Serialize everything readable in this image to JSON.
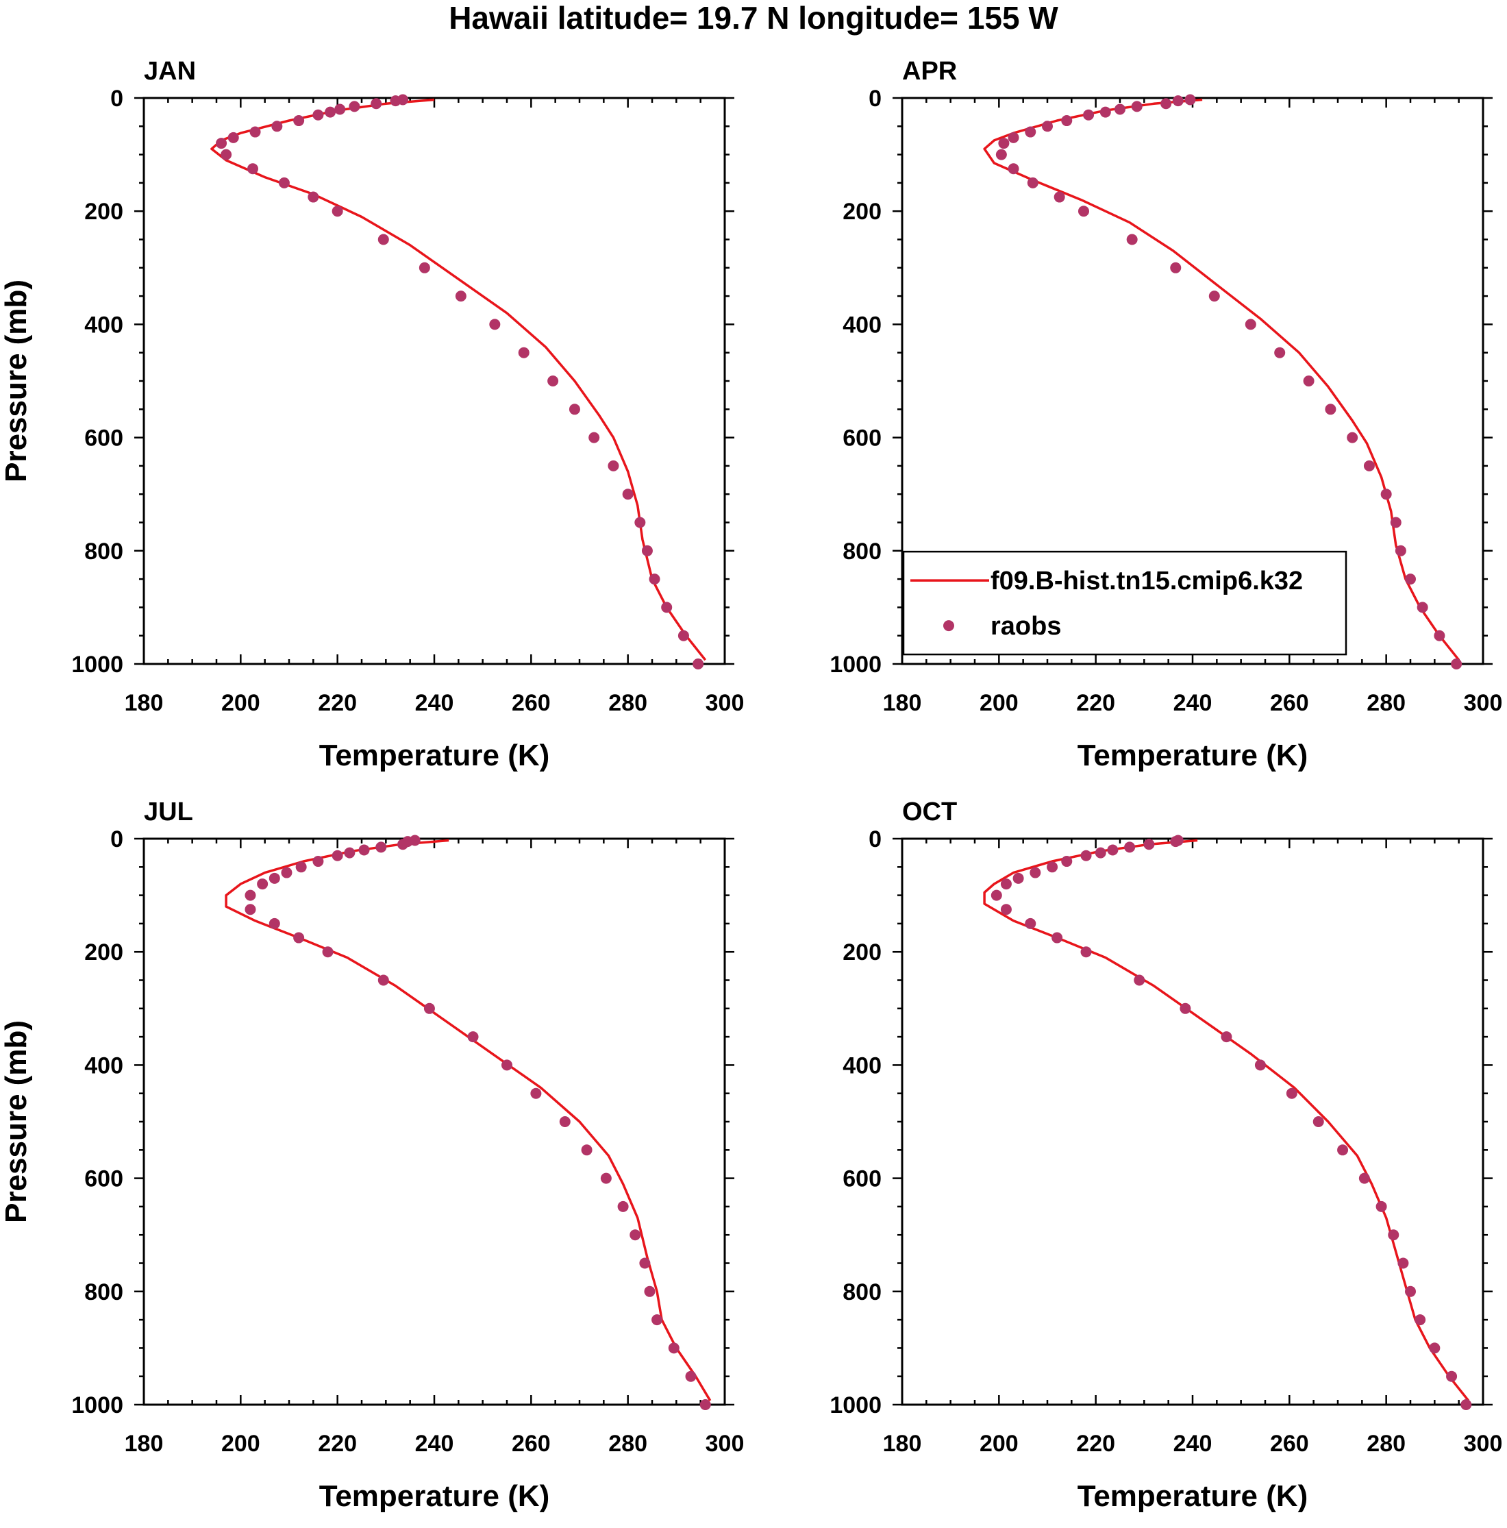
{
  "figure_title": "Hawaii  latitude= 19.7 N longitude= 155 W",
  "legend": {
    "model_label": "f09.B-hist.tn15.cmip6.k32",
    "obs_label": "raobs"
  },
  "colors": {
    "model": "#e8151b",
    "obs": "#b23466",
    "axis": "#000000"
  },
  "chart_data": [
    {
      "type": "line",
      "panel": "JAN",
      "title": "JAN",
      "xlabel": "Temperature (K)",
      "ylabel": "Pressure (mb)",
      "xlim": [
        180,
        300
      ],
      "ylim": [
        1000,
        0
      ],
      "xticks": [
        "180",
        "200",
        "220",
        "240",
        "260",
        "280",
        "300"
      ],
      "yticks": [
        "0",
        "200",
        "400",
        "600",
        "800",
        "1000"
      ],
      "series": [
        {
          "name": "f09.B-hist.tn15.cmip6.k32",
          "kind": "line",
          "t": [
            240,
            230,
            220,
            210,
            200,
            196,
            194,
            197,
            205,
            215,
            225,
            235,
            245,
            255,
            263,
            269,
            274,
            277,
            280,
            282,
            283,
            285,
            288,
            292,
            296
          ],
          "p": [
            3,
            10,
            22,
            40,
            62,
            75,
            90,
            110,
            140,
            170,
            210,
            260,
            320,
            380,
            440,
            500,
            560,
            600,
            660,
            720,
            780,
            850,
            900,
            950,
            993
          ]
        },
        {
          "name": "raobs",
          "kind": "scatter",
          "t": [
            233.5,
            232,
            228,
            223.5,
            220.5,
            218.5,
            216,
            212,
            207.5,
            203,
            198.5,
            196,
            197,
            202.5,
            209,
            215,
            220,
            229.5,
            238,
            245.5,
            252.5,
            258.5,
            264.5,
            269,
            273,
            277,
            280,
            282.5,
            284,
            285.5,
            288,
            291.5,
            294.5
          ],
          "p": [
            3,
            5,
            10,
            15,
            20,
            25,
            30,
            40,
            50,
            60,
            70,
            80,
            100,
            125,
            150,
            175,
            200,
            250,
            300,
            350,
            400,
            450,
            500,
            550,
            600,
            650,
            700,
            750,
            800,
            850,
            900,
            950,
            1000
          ]
        }
      ]
    },
    {
      "type": "line",
      "panel": "APR",
      "title": "APR",
      "xlabel": "Temperature (K)",
      "ylabel": "Pressure (mb)",
      "xlim": [
        180,
        300
      ],
      "ylim": [
        1000,
        0
      ],
      "xticks": [
        "180",
        "200",
        "220",
        "240",
        "260",
        "280",
        "300"
      ],
      "yticks": [
        "0",
        "200",
        "400",
        "600",
        "800",
        "1000"
      ],
      "series": [
        {
          "name": "f09.B-hist.tn15.cmip6.k32",
          "kind": "line",
          "t": [
            242,
            232,
            222,
            212,
            203,
            199,
            197,
            199,
            207,
            217,
            227,
            236,
            245,
            254,
            262,
            268,
            273,
            276,
            279,
            281,
            282,
            284,
            287,
            291,
            295
          ],
          "p": [
            3,
            10,
            22,
            40,
            62,
            75,
            90,
            115,
            145,
            180,
            220,
            270,
            330,
            390,
            450,
            510,
            570,
            610,
            670,
            730,
            790,
            850,
            900,
            950,
            993
          ]
        },
        {
          "name": "raobs",
          "kind": "scatter",
          "t": [
            239.5,
            237,
            234.5,
            228.5,
            225,
            222,
            218.5,
            214,
            210,
            206.5,
            203,
            201,
            200.5,
            203,
            207,
            212.5,
            217.5,
            227.5,
            236.5,
            244.5,
            252,
            258,
            264,
            268.5,
            273,
            276.5,
            280,
            282,
            283,
            285,
            287.5,
            291,
            294.5
          ],
          "p": [
            3,
            5,
            10,
            15,
            20,
            25,
            30,
            40,
            50,
            60,
            70,
            80,
            100,
            125,
            150,
            175,
            200,
            250,
            300,
            350,
            400,
            450,
            500,
            550,
            600,
            650,
            700,
            750,
            800,
            850,
            900,
            950,
            1000
          ]
        }
      ]
    },
    {
      "type": "line",
      "panel": "JUL",
      "title": "JUL",
      "xlabel": "Temperature (K)",
      "ylabel": "Pressure (mb)",
      "xlim": [
        180,
        300
      ],
      "ylim": [
        1000,
        0
      ],
      "xticks": [
        "180",
        "200",
        "220",
        "240",
        "260",
        "280",
        "300"
      ],
      "yticks": [
        "0",
        "200",
        "400",
        "600",
        "800",
        "1000"
      ],
      "series": [
        {
          "name": "f09.B-hist.tn15.cmip6.k32",
          "kind": "line",
          "t": [
            243,
            233,
            223,
            213,
            205,
            200,
            197,
            197,
            203,
            212,
            222,
            232,
            242,
            252,
            262,
            270,
            276,
            279,
            282,
            284,
            286,
            287,
            290,
            294,
            297
          ],
          "p": [
            3,
            10,
            22,
            40,
            60,
            80,
            100,
            120,
            145,
            175,
            210,
            260,
            320,
            380,
            440,
            500,
            560,
            610,
            670,
            740,
            800,
            850,
            900,
            950,
            993
          ]
        },
        {
          "name": "raobs",
          "kind": "scatter",
          "t": [
            236,
            234.5,
            233.5,
            229,
            225.5,
            222.5,
            220,
            216,
            212.5,
            209.5,
            207,
            204.5,
            202,
            202,
            207,
            212,
            218,
            229.5,
            239,
            248,
            255,
            261,
            267,
            271.5,
            275.5,
            279,
            281.5,
            283.5,
            284.5,
            286,
            289.5,
            293,
            296
          ],
          "p": [
            3,
            5,
            10,
            15,
            20,
            25,
            30,
            40,
            50,
            60,
            70,
            80,
            100,
            125,
            150,
            175,
            200,
            250,
            300,
            350,
            400,
            450,
            500,
            550,
            600,
            650,
            700,
            750,
            800,
            850,
            900,
            950,
            1000
          ]
        }
      ]
    },
    {
      "type": "line",
      "panel": "OCT",
      "title": "OCT",
      "xlabel": "Temperature (K)",
      "ylabel": "Pressure (mb)",
      "xlim": [
        180,
        300
      ],
      "ylim": [
        1000,
        0
      ],
      "xticks": [
        "180",
        "200",
        "220",
        "240",
        "260",
        "280",
        "300"
      ],
      "yticks": [
        "0",
        "200",
        "400",
        "600",
        "800",
        "1000"
      ],
      "series": [
        {
          "name": "f09.B-hist.tn15.cmip6.k32",
          "kind": "line",
          "t": [
            241,
            231,
            221,
            211,
            203,
            199,
            197,
            197,
            203,
            212,
            222,
            232,
            242,
            252,
            261,
            268,
            274,
            277,
            280,
            282,
            284,
            286,
            289,
            293,
            297
          ],
          "p": [
            3,
            10,
            22,
            40,
            60,
            80,
            95,
            115,
            145,
            175,
            210,
            260,
            320,
            380,
            440,
            500,
            560,
            610,
            670,
            730,
            790,
            850,
            900,
            950,
            993
          ]
        },
        {
          "name": "raobs",
          "kind": "scatter",
          "t": [
            237,
            236.5,
            231,
            227,
            223.5,
            221,
            218,
            214,
            211,
            207.5,
            204,
            201.5,
            199.5,
            201.5,
            206.5,
            212,
            218,
            229,
            238.5,
            247,
            254,
            260.5,
            266,
            271,
            275.5,
            279,
            281.5,
            283.5,
            285,
            287,
            290,
            293.5,
            296.5
          ],
          "p": [
            3,
            5,
            10,
            15,
            20,
            25,
            30,
            40,
            50,
            60,
            70,
            80,
            100,
            125,
            150,
            175,
            200,
            250,
            300,
            350,
            400,
            450,
            500,
            550,
            600,
            650,
            700,
            750,
            800,
            850,
            900,
            950,
            1000
          ]
        }
      ]
    }
  ]
}
